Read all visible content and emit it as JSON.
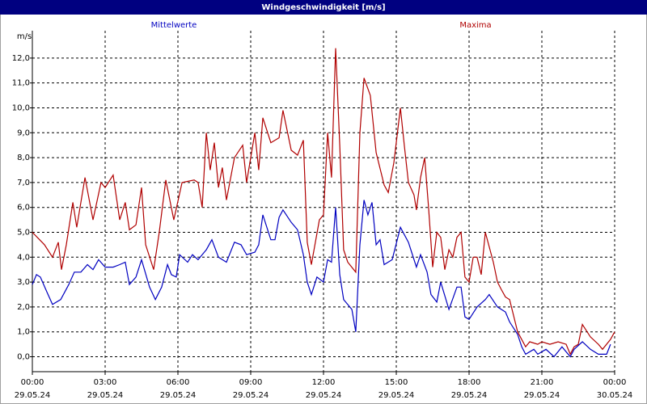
{
  "chart_data": {
    "type": "line",
    "title": "Windgeschwindigkeit [m/s]",
    "y_label": "m/s",
    "xlim": [
      0,
      24
    ],
    "ylim": [
      -0.6,
      13.1
    ],
    "grid": true,
    "xticks": [
      {
        "value": 0,
        "label": [
          "00:00",
          "29.05.24"
        ]
      },
      {
        "value": 3,
        "label": [
          "03:00",
          "29.05.24"
        ]
      },
      {
        "value": 6,
        "label": [
          "06:00",
          "29.05.24"
        ]
      },
      {
        "value": 9,
        "label": [
          "09:00",
          "29.05.24"
        ]
      },
      {
        "value": 12,
        "label": [
          "12:00",
          "29.05.24"
        ]
      },
      {
        "value": 15,
        "label": [
          "15:00",
          "29.05.24"
        ]
      },
      {
        "value": 18,
        "label": [
          "18:00",
          "29.05.24"
        ]
      },
      {
        "value": 21,
        "label": [
          "21:00",
          "29.05.24"
        ]
      },
      {
        "value": 24,
        "label": [
          "00:00",
          "30.05.24"
        ]
      }
    ],
    "yticks": [
      {
        "value": 0,
        "label": "0,0"
      },
      {
        "value": 1,
        "label": "1,0"
      },
      {
        "value": 2,
        "label": "2,0"
      },
      {
        "value": 3,
        "label": "3,0"
      },
      {
        "value": 4,
        "label": "4,0"
      },
      {
        "value": 5,
        "label": "5,0"
      },
      {
        "value": 6,
        "label": "6,0"
      },
      {
        "value": 7,
        "label": "7,0"
      },
      {
        "value": 8,
        "label": "8,0"
      },
      {
        "value": 9,
        "label": "9,0"
      },
      {
        "value": 10,
        "label": "10,0"
      },
      {
        "value": 11,
        "label": "11,0"
      },
      {
        "value": 12,
        "label": "12,0"
      }
    ],
    "series": [
      {
        "name": "Mittelwerte",
        "color": "#0000c0",
        "x": [
          0,
          0.17,
          0.33,
          0.6,
          0.83,
          1.17,
          1.5,
          1.73,
          2,
          2.27,
          2.5,
          2.73,
          3,
          3.33,
          3.6,
          3.83,
          4,
          4.27,
          4.5,
          4.83,
          5.07,
          5.33,
          5.57,
          5.73,
          5.93,
          6.07,
          6.4,
          6.6,
          6.83,
          7.17,
          7.4,
          7.67,
          8,
          8.33,
          8.6,
          8.83,
          9.17,
          9.33,
          9.5,
          9.83,
          10,
          10.17,
          10.33,
          10.67,
          10.93,
          11.17,
          11.33,
          11.5,
          11.73,
          12,
          12.17,
          12.33,
          12.5,
          12.67,
          12.83,
          13.17,
          13.33,
          13.5,
          13.67,
          13.83,
          14,
          14.17,
          14.33,
          14.5,
          14.83,
          15.17,
          15.5,
          15.83,
          16,
          16.27,
          16.43,
          16.67,
          16.83,
          17.17,
          17.5,
          17.67,
          17.83,
          18,
          18.33,
          18.67,
          18.83,
          19.17,
          19.5,
          19.67,
          20,
          20.17,
          20.33,
          20.67,
          20.83,
          21.17,
          21.5,
          21.83,
          22.17,
          22.33,
          22.67,
          23,
          23.33,
          23.67,
          23.83
        ],
        "values": [
          2.9,
          3.3,
          3.2,
          2.6,
          2.1,
          2.3,
          2.9,
          3.4,
          3.4,
          3.7,
          3.5,
          3.9,
          3.6,
          3.6,
          3.7,
          3.8,
          2.9,
          3.2,
          3.9,
          2.8,
          2.3,
          2.8,
          3.7,
          3.3,
          3.2,
          4.1,
          3.8,
          4.1,
          3.9,
          4.3,
          4.7,
          4.0,
          3.8,
          4.6,
          4.5,
          4.1,
          4.2,
          4.5,
          5.7,
          4.7,
          4.7,
          5.6,
          5.9,
          5.4,
          5.1,
          4.1,
          3.0,
          2.5,
          3.2,
          3.0,
          3.9,
          3.8,
          6.0,
          3.3,
          2.3,
          1.9,
          1.0,
          4.5,
          6.3,
          5.7,
          6.2,
          4.5,
          4.7,
          3.7,
          3.9,
          5.2,
          4.6,
          3.6,
          4.1,
          3.4,
          2.5,
          2.2,
          3.0,
          1.9,
          2.8,
          2.8,
          1.6,
          1.5,
          2.0,
          2.3,
          2.5,
          2.0,
          1.8,
          1.4,
          0.9,
          0.4,
          0.1,
          0.3,
          0.1,
          0.3,
          0.0,
          0.4,
          0.0,
          0.3,
          0.6,
          0.3,
          0.1,
          0.1,
          0.5
        ]
      },
      {
        "name": "Maxima",
        "color": "#b00000",
        "x": [
          0,
          0.5,
          0.83,
          1.07,
          1.2,
          1.4,
          1.67,
          1.83,
          2.17,
          2.5,
          2.83,
          3,
          3.33,
          3.6,
          3.83,
          4,
          4.27,
          4.5,
          4.67,
          5,
          5.23,
          5.5,
          5.83,
          6.17,
          6.67,
          6.83,
          7,
          7.17,
          7.33,
          7.5,
          7.67,
          7.83,
          8,
          8.33,
          8.67,
          8.83,
          9.17,
          9.33,
          9.5,
          9.83,
          10.17,
          10.33,
          10.67,
          10.93,
          11.17,
          11.33,
          11.5,
          11.83,
          12,
          12.17,
          12.33,
          12.5,
          12.67,
          12.83,
          13,
          13.33,
          13.5,
          13.67,
          13.93,
          14.17,
          14.5,
          14.67,
          14.9,
          15.17,
          15.33,
          15.5,
          15.73,
          15.83,
          16,
          16.17,
          16.33,
          16.5,
          16.67,
          16.83,
          17,
          17.17,
          17.33,
          17.5,
          17.67,
          17.83,
          18,
          18.17,
          18.33,
          18.5,
          18.67,
          19,
          19.17,
          19.33,
          19.5,
          19.67,
          20,
          20.33,
          20.5,
          20.83,
          21,
          21.33,
          21.67,
          22,
          22.17,
          22.33,
          22.5,
          22.67,
          23,
          23.33,
          23.5,
          23.83,
          24
        ],
        "values": [
          5.0,
          4.5,
          4.0,
          4.6,
          3.5,
          4.5,
          6.2,
          5.2,
          7.2,
          5.5,
          7.0,
          6.8,
          7.3,
          5.5,
          6.2,
          5.1,
          5.3,
          6.8,
          4.5,
          3.5,
          5.0,
          7.1,
          5.5,
          7.0,
          7.1,
          7.0,
          6.0,
          9.0,
          7.5,
          8.6,
          6.8,
          7.6,
          6.3,
          8.0,
          8.5,
          7.0,
          9.0,
          7.5,
          9.6,
          8.6,
          8.8,
          9.9,
          8.3,
          8.1,
          8.7,
          4.6,
          3.7,
          5.5,
          5.7,
          9.0,
          7.2,
          12.4,
          8.5,
          4.3,
          3.8,
          3.4,
          9.0,
          11.2,
          10.5,
          8.2,
          6.9,
          6.6,
          7.8,
          10.0,
          8.5,
          7.0,
          6.5,
          5.9,
          7.2,
          8.0,
          6.0,
          3.6,
          5.0,
          4.8,
          3.5,
          4.3,
          4.0,
          4.8,
          5.0,
          3.2,
          3.0,
          4.0,
          4.0,
          3.3,
          5.0,
          3.8,
          3.0,
          2.7,
          2.4,
          2.3,
          1.0,
          0.4,
          0.6,
          0.5,
          0.6,
          0.5,
          0.6,
          0.5,
          0.1,
          0.4,
          0.5,
          1.3,
          0.8,
          0.5,
          0.3,
          0.7,
          1.0
        ]
      }
    ]
  }
}
